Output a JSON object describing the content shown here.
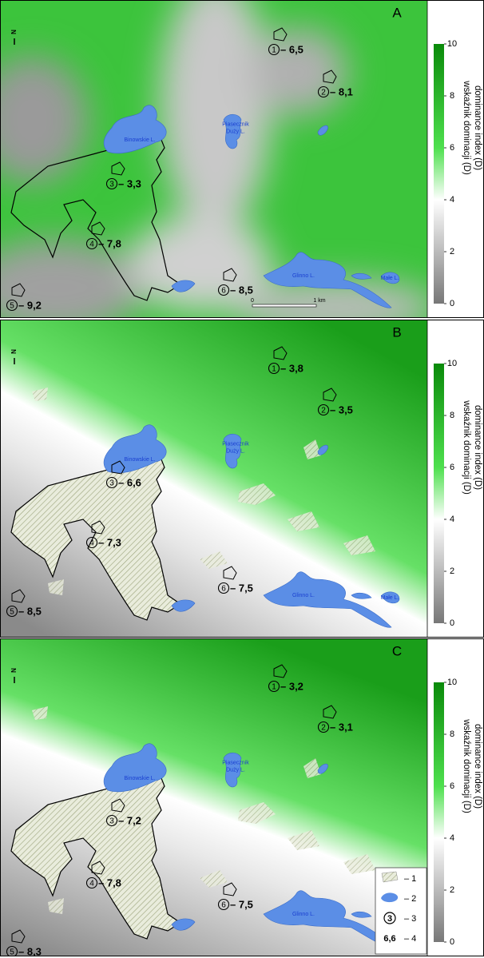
{
  "north": "N",
  "colorbar": {
    "range": [
      0,
      10
    ],
    "ticks": [
      0,
      2,
      4,
      6,
      8,
      10
    ],
    "title": [
      "wskaźnik dominacji (D)",
      "dominance index (D)"
    ]
  },
  "panels": [
    {
      "letter": "A",
      "sites": [
        {
          "number": "1",
          "label": "– 6,5"
        },
        {
          "number": "2",
          "label": "– 8,1"
        },
        {
          "number": "3",
          "label": "– 3,3"
        },
        {
          "number": "4",
          "label": "– 7,8"
        },
        {
          "number": "5",
          "label": "– 9,2"
        },
        {
          "number": "6",
          "label": "– 8,5"
        }
      ],
      "lakes": [
        [
          "Binowskie L."
        ],
        [
          "Piasecznik",
          "Duży L."
        ],
        [
          "Glinno L."
        ],
        [
          "Małe L."
        ]
      ],
      "scale_bar": {
        "start": "0",
        "end": "1 km"
      }
    },
    {
      "letter": "B",
      "sites": [
        {
          "number": "1",
          "label": "– 3,8"
        },
        {
          "number": "2",
          "label": "– 3,5"
        },
        {
          "number": "3",
          "label": "– 6,6"
        },
        {
          "number": "4",
          "label": "– 7,3"
        },
        {
          "number": "5",
          "label": "– 8,5"
        },
        {
          "number": "6",
          "label": "– 7,5"
        }
      ],
      "lakes": [
        [
          "Binowskie L."
        ],
        [
          "Piasecznik",
          "Duży L."
        ],
        [
          "Glinno L."
        ],
        [
          "Małe L."
        ]
      ]
    },
    {
      "letter": "C",
      "sites": [
        {
          "number": "1",
          "label": "– 3,2"
        },
        {
          "number": "2",
          "label": "– 3,1"
        },
        {
          "number": "3",
          "label": "– 7,2"
        },
        {
          "number": "4",
          "label": "– 7,8"
        },
        {
          "number": "5",
          "label": "– 8,3"
        },
        {
          "number": "6",
          "label": "– 7,5"
        }
      ],
      "lakes": [
        [
          "Binowskie L."
        ],
        [
          "Piasecznik",
          "Duży L."
        ],
        [
          "Glinno L."
        ]
      ],
      "legend": [
        {
          "label": "– 1"
        },
        {
          "label": "– 2"
        },
        {
          "symbol": "3",
          "label": "– 3"
        },
        {
          "symbol": "6,6",
          "label": "– 4"
        }
      ]
    }
  ]
}
